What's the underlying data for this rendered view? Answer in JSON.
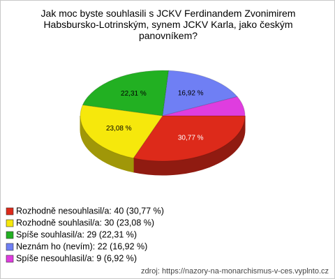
{
  "chart_data": {
    "type": "pie",
    "title": "Jak moc byste souhlasili s JCKV Ferdinandem Zvonimirem Habsbursko-Lotrinským, synem JCKV Karla, jako českým panovníkem?",
    "categories": [
      "Rozhodně nesouhlasil/a: 40 (30,77 %)",
      "Rozhodně souhlasil/a: 30 (23,08 %)",
      "Spíše souhlasil/a: 29 (22,31 %)",
      "Neznám ho (nevím): 22 (16,92 %)",
      "Spíše nesouhlasil/a: 9 (6,92 %)"
    ],
    "values": [
      30.77,
      23.08,
      22.31,
      16.92,
      6.92
    ],
    "value_labels": [
      "30,77 %",
      "23,08 %",
      "22,31 %",
      "16,92 %",
      null
    ],
    "colors": [
      "#dd2a1a",
      "#f6e80c",
      "#22b022",
      "#6f7ff4",
      "#df3ddf"
    ],
    "source": "zdroj: https://nazory-na-monarchismus-v-ces.vyplnto.cz"
  }
}
